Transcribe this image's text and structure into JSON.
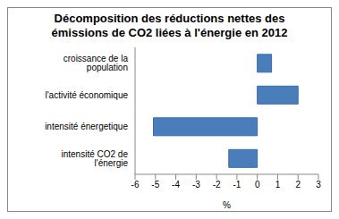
{
  "chart_data": {
    "type": "bar",
    "orientation": "horizontal",
    "title": "Décomposition des réductions nettes des émissions de CO2 liées à l'énergie en 2012",
    "categories": [
      "croissance de la population",
      "l'activité économique",
      "intensité énergetique",
      "intensité CO2 de l'énergie"
    ],
    "values": [
      0.7,
      2.0,
      -5.1,
      -1.4
    ],
    "color": "#4a7ebb",
    "xlabel": "%",
    "xlim": [
      -6,
      3
    ],
    "xticks": [
      -6,
      -5,
      -4,
      -3,
      -2,
      -1,
      0,
      1,
      2,
      3
    ],
    "grid": false
  }
}
